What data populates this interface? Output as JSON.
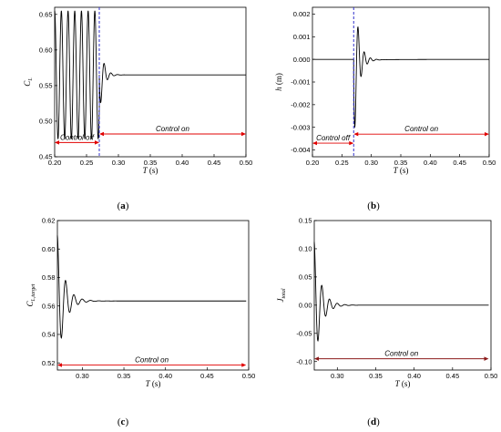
{
  "chart_data": [
    {
      "type": "line",
      "panel_label": "a",
      "xlabel": "T (s)",
      "ylabel": "C_L",
      "ylabel_main": "C",
      "ylabel_sub": "L",
      "xlim": [
        0.2,
        0.5
      ],
      "ylim": [
        0.45,
        0.66
      ],
      "xticks": [
        0.2,
        0.25,
        0.3,
        0.35,
        0.4,
        0.45,
        0.5
      ],
      "xtick_labels": [
        "0.20",
        "0.25",
        "0.30",
        "0.35",
        "0.40",
        "0.45",
        "0.50"
      ],
      "yticks": [
        0.45,
        0.5,
        0.55,
        0.6,
        0.65
      ],
      "ytick_labels": [
        "0.45",
        "0.50",
        "0.55",
        "0.60",
        "0.65"
      ],
      "control_switch_t": 0.27,
      "annotations": [
        {
          "text": "Control off",
          "from": 0.2,
          "to": 0.27,
          "y": 0.47
        },
        {
          "text": "Control on",
          "from": 0.27,
          "to": 0.5,
          "y": 0.482
        }
      ],
      "signal": {
        "before": {
          "t0": 0.2,
          "t1": 0.27,
          "mean": 0.565,
          "amp": 0.09,
          "period": 0.0105
        },
        "after": {
          "t_start": 0.27,
          "t_end": 0.5,
          "mean": 0.565,
          "amp0": 0.058,
          "decay": 0.006,
          "period": 0.0105
        },
        "grid": {
          "x": [
            0.27,
            0.275,
            0.28,
            0.285,
            0.29,
            0.295,
            0.3,
            0.35,
            0.4,
            0.45,
            0.5
          ],
          "y": [
            0.65,
            0.49,
            0.622,
            0.52,
            0.578,
            0.556,
            0.565,
            0.565,
            0.565,
            0.565,
            0.565
          ]
        }
      }
    },
    {
      "type": "line",
      "panel_label": "b",
      "xlabel": "T (s)",
      "ylabel": "h (m)",
      "xlim": [
        0.2,
        0.5
      ],
      "ylim": [
        -0.0043,
        0.0023
      ],
      "xticks": [
        0.2,
        0.25,
        0.3,
        0.35,
        0.4,
        0.45,
        0.5
      ],
      "xtick_labels": [
        "0.20",
        "0.25",
        "0.30",
        "0.35",
        "0.40",
        "0.45",
        "0.50"
      ],
      "yticks": [
        -0.004,
        -0.003,
        -0.002,
        -0.001,
        0.0,
        0.001,
        0.002
      ],
      "ytick_labels": [
        "-0.004",
        "-0.003",
        "-0.002",
        "-0.001",
        "0.000",
        "0.001",
        "0.002"
      ],
      "control_switch_t": 0.27,
      "annotations": [
        {
          "text": "Control off",
          "from": 0.2,
          "to": 0.27,
          "y": -0.0037
        },
        {
          "text": "Control on",
          "from": 0.27,
          "to": 0.5,
          "y": -0.0033
        }
      ],
      "signal": {
        "before": {
          "t0": 0.2,
          "t1": 0.27,
          "value": 0.0
        },
        "after": {
          "t_start": 0.27,
          "t_end": 0.5,
          "amp0": -0.0039,
          "decay": 0.0075,
          "period": 0.0105,
          "settle": 0.0
        }
      }
    },
    {
      "type": "line",
      "panel_label": "c",
      "xlabel": "T (s)",
      "ylabel": "C_L,target",
      "ylabel_main": "C",
      "ylabel_sub": "L,target",
      "xlim": [
        0.27,
        0.5
      ],
      "ylim": [
        0.515,
        0.62
      ],
      "xticks": [
        0.3,
        0.35,
        0.4,
        0.45,
        0.5
      ],
      "xtick_labels": [
        "0.30",
        "0.35",
        "0.40",
        "0.45",
        "0.50"
      ],
      "yticks": [
        0.52,
        0.54,
        0.56,
        0.58,
        0.6,
        0.62
      ],
      "ytick_labels": [
        "0.52",
        "0.54",
        "0.56",
        "0.58",
        "0.60",
        "0.62"
      ],
      "annotations": [
        {
          "text": "Control on",
          "from": 0.27,
          "to": 0.497,
          "y": 0.5185
        }
      ],
      "signal": {
        "after": {
          "t_start": 0.27,
          "t_end": 0.497,
          "mean": 0.5635,
          "amp0": 0.046,
          "decay": 0.0085,
          "period": 0.0105
        }
      }
    },
    {
      "type": "line",
      "panel_label": "d",
      "xlabel": "T (s)",
      "ylabel": "J_total",
      "ylabel_main": "J",
      "ylabel_sub": "total",
      "xlim": [
        0.27,
        0.5
      ],
      "ylim": [
        -0.115,
        0.15
      ],
      "xticks": [
        0.3,
        0.35,
        0.4,
        0.45,
        0.5
      ],
      "xtick_labels": [
        "0.30",
        "0.35",
        "0.40",
        "0.45",
        "0.50"
      ],
      "yticks": [
        -0.1,
        -0.05,
        0.0,
        0.05,
        0.1,
        0.15
      ],
      "ytick_labels": [
        "-0.10",
        "-0.05",
        "0.00",
        "0.05",
        "0.10",
        "0.15"
      ],
      "annotations": [
        {
          "text": "Control on",
          "from": 0.27,
          "to": 0.497,
          "y": -0.095
        }
      ],
      "signal": {
        "after": {
          "t_start": 0.27,
          "t_end": 0.497,
          "mean": 0.0,
          "amp0": 0.112,
          "decay": 0.0085,
          "period": 0.0105
        }
      }
    }
  ],
  "colors": {
    "signal": "#000000",
    "control_line": "#3333cc",
    "arrow": "#e00000",
    "arrow_dark": "#8b1a1a"
  }
}
